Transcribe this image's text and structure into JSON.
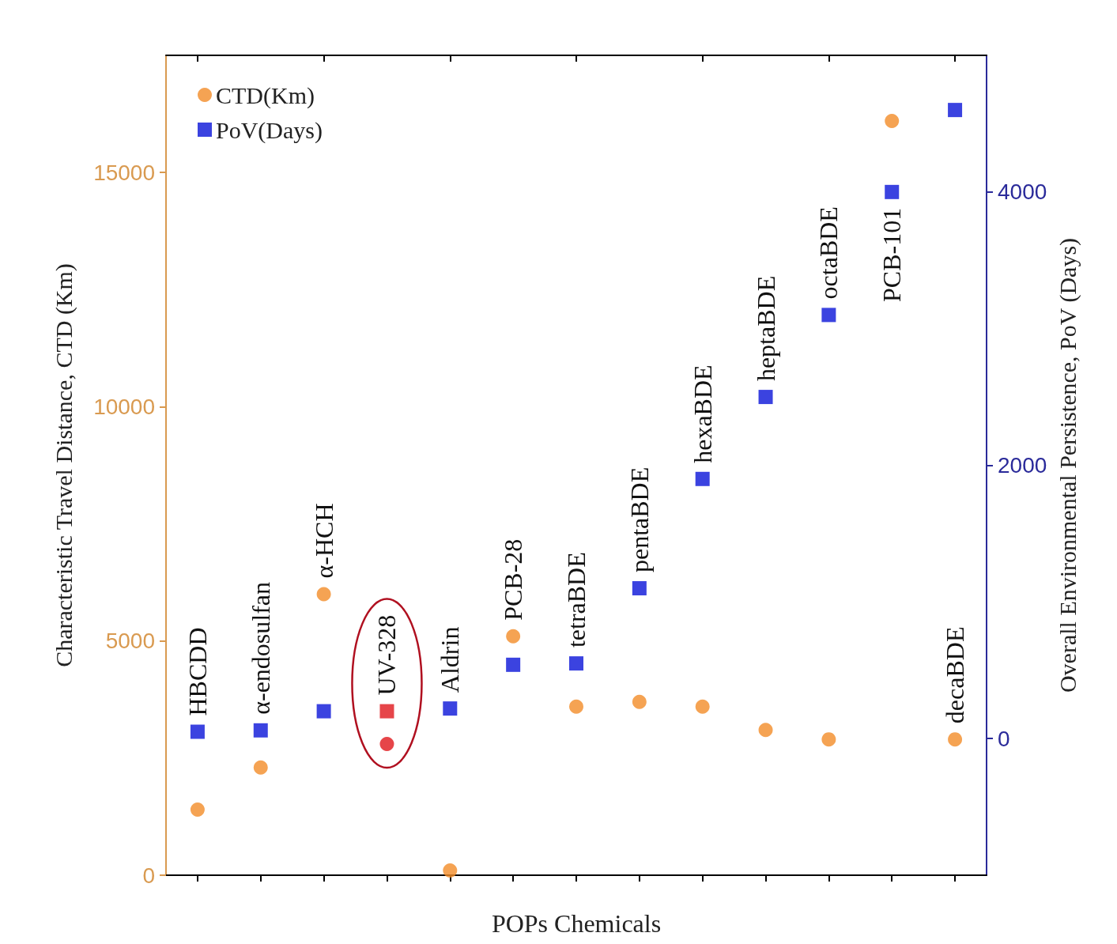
{
  "chart_data": {
    "type": "scatter",
    "xlabel": "POPs Chemicals",
    "ylabel": "Characteristic Travel Distance, CTD (Km)",
    "y2label": "Overall Environmental Persistence, PoV (Days)",
    "categories": [
      "HBCDD",
      "α-endosulfan",
      "α-HCH",
      "UV-328",
      "Aldrin",
      "PCB-28",
      "tetraBDE",
      "pentaBDE",
      "hexaBDE",
      "heptaBDE",
      "octaBDE",
      "PCB-101",
      "decaBDE"
    ],
    "series": [
      {
        "name": "CTD(Km)",
        "color": "#f28c28",
        "marker": "circle",
        "values": [
          1400,
          2300,
          6000,
          2800,
          100,
          5100,
          3600,
          3700,
          3600,
          3100,
          2900,
          16100,
          2900
        ],
        "colors": [
          "#f28c28",
          "#f28c28",
          "#f28c28",
          "#e0161c",
          "#f28c28",
          "#f28c28",
          "#f28c28",
          "#f28c28",
          "#f28c28",
          "#f28c28",
          "#f28c28",
          "#f28c28",
          "#f28c28"
        ]
      },
      {
        "name": "PoV(Days)",
        "color": "#0a14d8",
        "marker": "square",
        "axis": "y2",
        "values": [
          50,
          60,
          200,
          200,
          220,
          540,
          550,
          1100,
          1900,
          2500,
          3100,
          4000,
          4600
        ],
        "colors": [
          "#0a14d8",
          "#0a14d8",
          "#0a14d8",
          "#e0161c",
          "#0a14d8",
          "#0a14d8",
          "#0a14d8",
          "#0a14d8",
          "#0a14d8",
          "#0a14d8",
          "#0a14d8",
          "#0a14d8",
          "#0a14d8"
        ]
      }
    ],
    "ylim": [
      0,
      17500
    ],
    "yticks": [
      0,
      5000,
      10000,
      15000
    ],
    "y2lim": [
      -1000,
      5000
    ],
    "y2ticks": [
      0,
      2000,
      4000
    ],
    "legend": "top left",
    "grid": false
  }
}
